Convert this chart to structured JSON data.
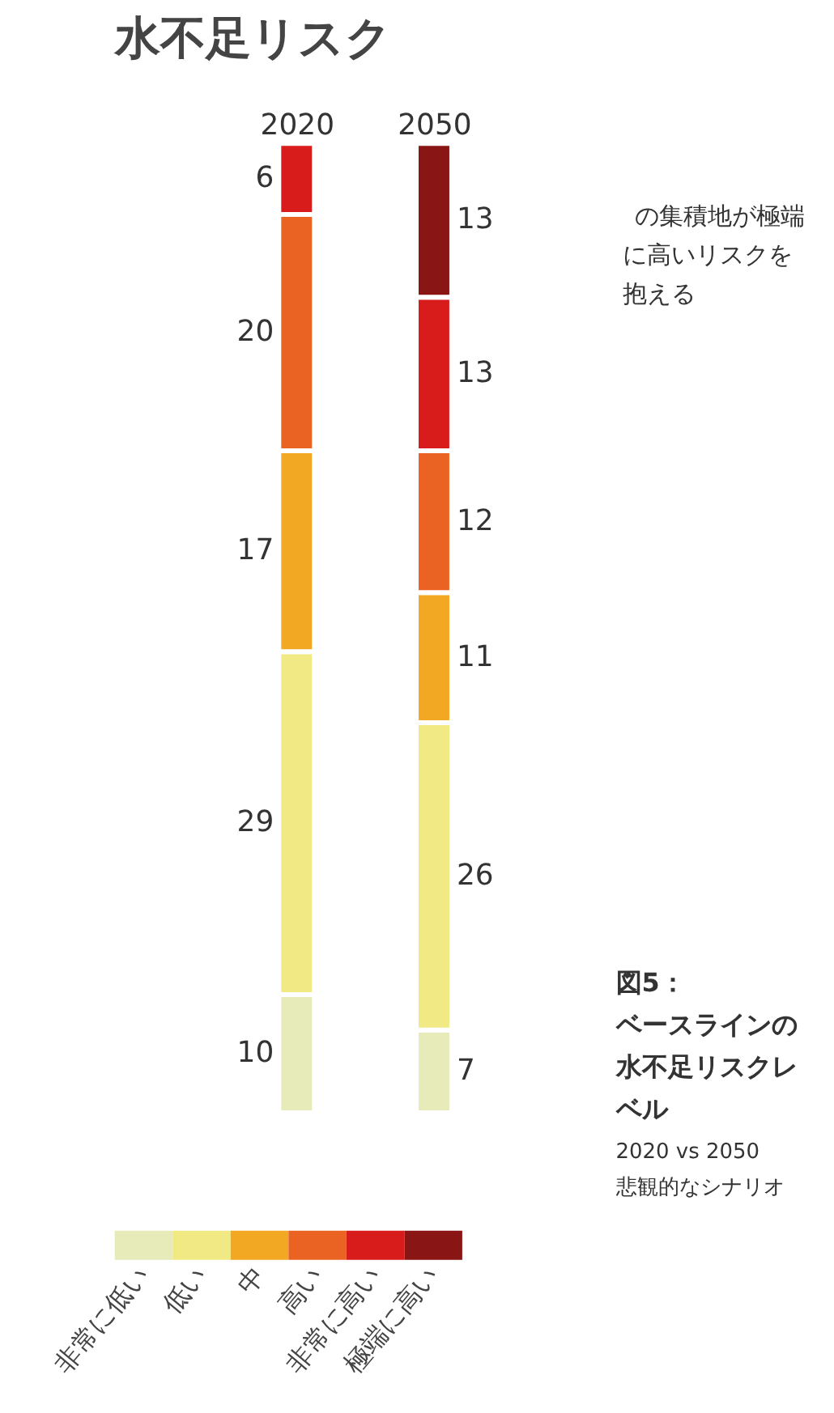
{
  "chart_data": {
    "type": "bar",
    "stacked": true,
    "title": "水不足リスク",
    "categories": [
      "2020",
      "2050"
    ],
    "series": [
      {
        "name": "非常に低い",
        "color": "#e6ebb9",
        "values": [
          10,
          7
        ]
      },
      {
        "name": "低い",
        "color": "#f1e983",
        "values": [
          29,
          26
        ]
      },
      {
        "name": "中",
        "color": "#f3a823",
        "values": [
          17,
          11
        ]
      },
      {
        "name": "高い",
        "color": "#ea6322",
        "values": [
          20,
          12
        ]
      },
      {
        "name": "非常に高い",
        "color": "#d81c1c",
        "values": [
          6,
          13
        ]
      },
      {
        "name": "極端に高い",
        "color": "#8a1515",
        "values": [
          null,
          13
        ]
      }
    ],
    "data_labels": true,
    "legend": "bottom",
    "annotations": [
      "の集積地が極端に高いリスクを抱える",
      "図5：",
      "ベースラインの水不足リスクレベル",
      "2020 vs 2050",
      "悲観的なシナリオ"
    ]
  }
}
